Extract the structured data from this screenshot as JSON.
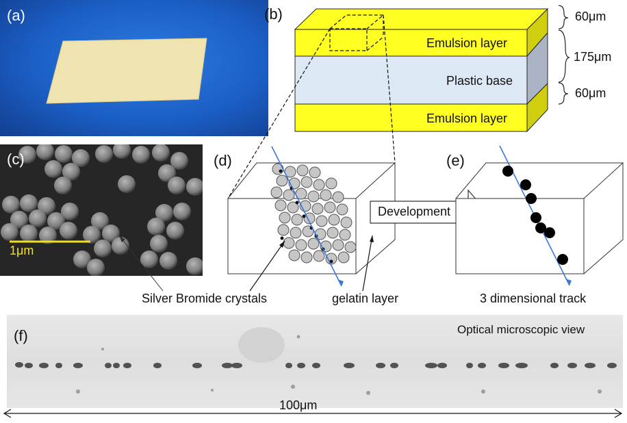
{
  "panels": {
    "a": "(a)",
    "b": "(b)",
    "c": "(c)",
    "d": "(d)",
    "e": "(e)",
    "f": "(f)"
  },
  "film": {
    "emulsion_top": "Emulsion layer",
    "plastic_base": "Plastic base",
    "emulsion_bottom": "Emulsion layer",
    "dim_top": "60μm",
    "dim_mid": "175μm",
    "dim_bottom": "60μm"
  },
  "sem": {
    "scale_label": "1μm"
  },
  "labels": {
    "crystals": "Silver Bromide crystals",
    "gelatin": "gelatin layer",
    "development": "Development",
    "track": "3 dimensional track"
  },
  "microscope": {
    "title": "Optical microscopic view",
    "scale": "100μm"
  },
  "colors": {
    "photo_blue": "#1b5fc6",
    "film_sheet": "#efe3b0",
    "emulsion": "#ffff22",
    "base": "#dce8f4",
    "track": "#3a78d8"
  }
}
